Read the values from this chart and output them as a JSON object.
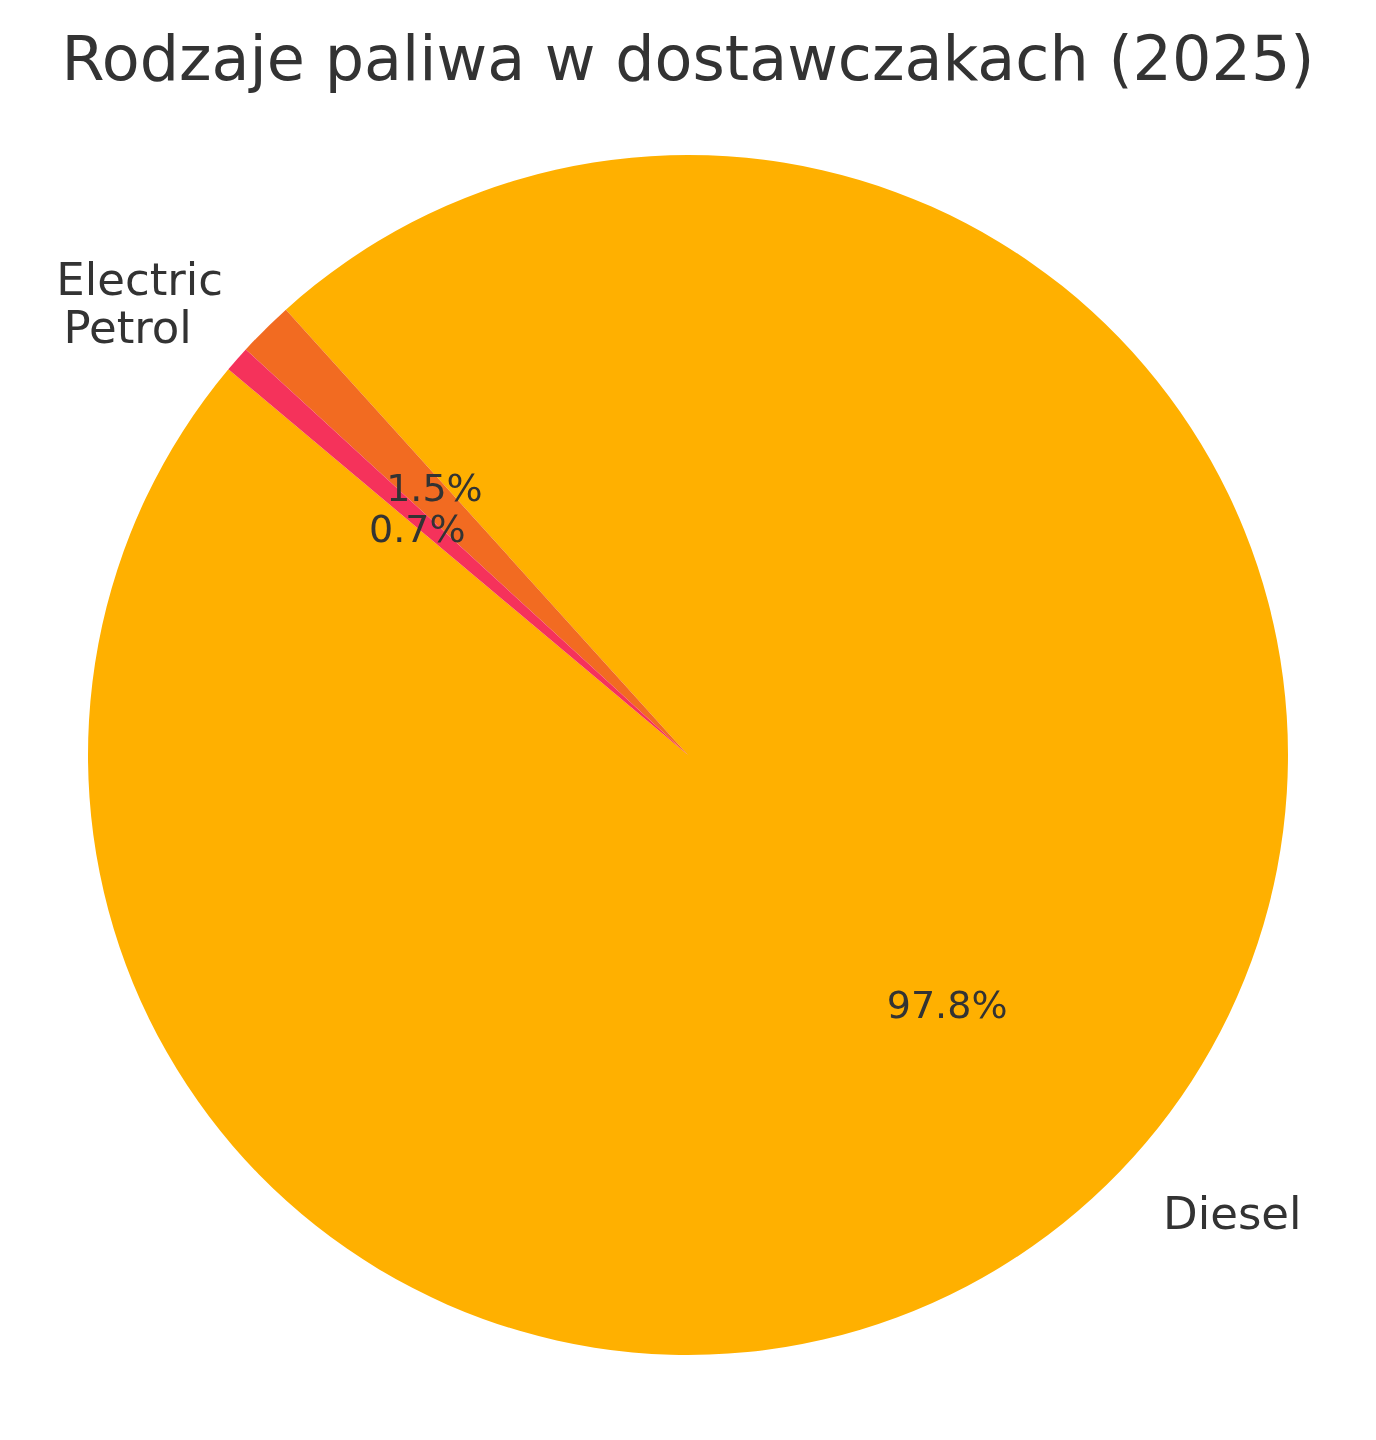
{
  "chart_data": {
    "type": "pie",
    "title": "Rodzaje paliwa w dostawczakach (2025)",
    "categories": [
      "Diesel",
      "Electric",
      "Petrol"
    ],
    "values": [
      97.8,
      1.5,
      0.7
    ],
    "colors": [
      "#ffb000",
      "#f26b21",
      "#f5325b"
    ],
    "value_labels": [
      "97.8%",
      "1.5%",
      "0.7%"
    ]
  }
}
